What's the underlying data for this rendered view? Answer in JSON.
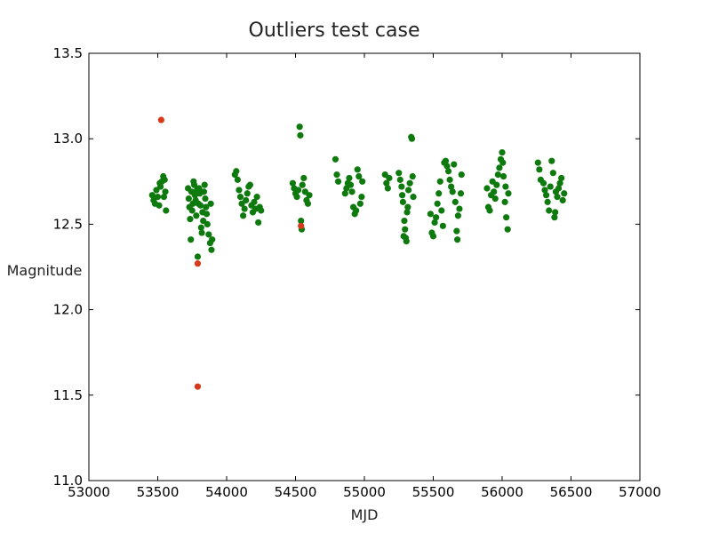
{
  "chart_data": {
    "type": "scatter",
    "title": "Outliers test case",
    "xlabel": "MJD",
    "ylabel": "Magnitude",
    "xlim": [
      53000,
      57000
    ],
    "ylim": [
      11.0,
      13.5
    ],
    "xticks": [
      53000,
      53500,
      54000,
      54500,
      55000,
      55500,
      56000,
      56500,
      57000
    ],
    "yticks": [
      11.0,
      11.5,
      12.0,
      12.5,
      13.0,
      13.5
    ],
    "xtick_labels": [
      "53000",
      "53500",
      "54000",
      "54500",
      "55000",
      "55500",
      "56000",
      "56500",
      "57000"
    ],
    "ytick_labels": [
      "11.0",
      "11.5",
      "12.0",
      "12.5",
      "13.0",
      "13.5"
    ],
    "grid": false,
    "series": [
      {
        "color": "#d63a1a",
        "points": [
          [
            53525,
            13.11
          ],
          [
            53790,
            12.27
          ],
          [
            53790,
            11.55
          ],
          [
            54540,
            12.49
          ]
        ]
      },
      {
        "color": "#0e7a0e",
        "points": [
          [
            53460,
            12.67
          ],
          [
            53470,
            12.64
          ],
          [
            53480,
            12.62
          ],
          [
            53490,
            12.7
          ],
          [
            53500,
            12.66
          ],
          [
            53510,
            12.61
          ],
          [
            53520,
            12.72
          ],
          [
            53530,
            12.75
          ],
          [
            53540,
            12.78
          ],
          [
            53550,
            12.76
          ],
          [
            53555,
            12.69
          ],
          [
            53560,
            12.58
          ],
          [
            53545,
            12.66
          ],
          [
            53515,
            12.74
          ],
          [
            53720,
            12.71
          ],
          [
            53725,
            12.65
          ],
          [
            53730,
            12.6
          ],
          [
            53735,
            12.53
          ],
          [
            53740,
            12.41
          ],
          [
            53745,
            12.69
          ],
          [
            53750,
            12.58
          ],
          [
            53755,
            12.62
          ],
          [
            53760,
            12.75
          ],
          [
            53765,
            12.73
          ],
          [
            53770,
            12.67
          ],
          [
            53775,
            12.64
          ],
          [
            53780,
            12.55
          ],
          [
            53785,
            12.7
          ],
          [
            53790,
            12.31
          ],
          [
            53795,
            12.62
          ],
          [
            53800,
            12.71
          ],
          [
            53805,
            12.68
          ],
          [
            53810,
            12.61
          ],
          [
            53815,
            12.48
          ],
          [
            53820,
            12.45
          ],
          [
            53825,
            12.57
          ],
          [
            53830,
            12.52
          ],
          [
            53835,
            12.69
          ],
          [
            53840,
            12.73
          ],
          [
            53845,
            12.65
          ],
          [
            53850,
            12.6
          ],
          [
            53855,
            12.56
          ],
          [
            53860,
            12.5
          ],
          [
            53870,
            12.44
          ],
          [
            53880,
            12.39
          ],
          [
            53890,
            12.35
          ],
          [
            53895,
            12.41
          ],
          [
            53885,
            12.62
          ],
          [
            54060,
            12.79
          ],
          [
            54070,
            12.81
          ],
          [
            54080,
            12.76
          ],
          [
            54090,
            12.7
          ],
          [
            54100,
            12.66
          ],
          [
            54110,
            12.62
          ],
          [
            54120,
            12.55
          ],
          [
            54130,
            12.59
          ],
          [
            54140,
            12.64
          ],
          [
            54150,
            12.68
          ],
          [
            54160,
            12.72
          ],
          [
            54170,
            12.73
          ],
          [
            54180,
            12.61
          ],
          [
            54190,
            12.57
          ],
          [
            54200,
            12.63
          ],
          [
            54210,
            12.59
          ],
          [
            54220,
            12.66
          ],
          [
            54230,
            12.51
          ],
          [
            54240,
            12.6
          ],
          [
            54250,
            12.58
          ],
          [
            54480,
            12.74
          ],
          [
            54490,
            12.71
          ],
          [
            54500,
            12.68
          ],
          [
            54510,
            12.66
          ],
          [
            54520,
            12.7
          ],
          [
            54530,
            13.07
          ],
          [
            54535,
            13.02
          ],
          [
            54540,
            12.52
          ],
          [
            54545,
            12.47
          ],
          [
            54550,
            12.73
          ],
          [
            54560,
            12.77
          ],
          [
            54570,
            12.69
          ],
          [
            54580,
            12.64
          ],
          [
            54590,
            12.62
          ],
          [
            54600,
            12.67
          ],
          [
            54790,
            12.88
          ],
          [
            54800,
            12.79
          ],
          [
            54810,
            12.75
          ],
          [
            54860,
            12.68
          ],
          [
            54870,
            12.71
          ],
          [
            54880,
            12.74
          ],
          [
            54890,
            12.77
          ],
          [
            54900,
            12.73
          ],
          [
            54910,
            12.69
          ],
          [
            54920,
            12.6
          ],
          [
            54930,
            12.56
          ],
          [
            54940,
            12.58
          ],
          [
            54950,
            12.82
          ],
          [
            54960,
            12.78
          ],
          [
            54970,
            12.62
          ],
          [
            54980,
            12.66
          ],
          [
            54985,
            12.75
          ],
          [
            55150,
            12.79
          ],
          [
            55160,
            12.74
          ],
          [
            55170,
            12.71
          ],
          [
            55180,
            12.77
          ],
          [
            55250,
            12.8
          ],
          [
            55260,
            12.76
          ],
          [
            55270,
            12.72
          ],
          [
            55275,
            12.67
          ],
          [
            55280,
            12.63
          ],
          [
            55290,
            12.52
          ],
          [
            55295,
            12.47
          ],
          [
            55300,
            12.42
          ],
          [
            55305,
            12.4
          ],
          [
            55310,
            12.57
          ],
          [
            55315,
            12.6
          ],
          [
            55320,
            12.7
          ],
          [
            55330,
            12.74
          ],
          [
            55340,
            13.01
          ],
          [
            55345,
            13.0
          ],
          [
            55350,
            12.78
          ],
          [
            55355,
            12.66
          ],
          [
            55285,
            12.43
          ],
          [
            55480,
            12.56
          ],
          [
            55490,
            12.45
          ],
          [
            55500,
            12.43
          ],
          [
            55510,
            12.51
          ],
          [
            55520,
            12.54
          ],
          [
            55530,
            12.62
          ],
          [
            55540,
            12.68
          ],
          [
            55550,
            12.75
          ],
          [
            55560,
            12.58
          ],
          [
            55570,
            12.49
          ],
          [
            55580,
            12.86
          ],
          [
            55590,
            12.87
          ],
          [
            55600,
            12.84
          ],
          [
            55610,
            12.81
          ],
          [
            55620,
            12.76
          ],
          [
            55630,
            12.72
          ],
          [
            55640,
            12.69
          ],
          [
            55650,
            12.85
          ],
          [
            55660,
            12.63
          ],
          [
            55670,
            12.46
          ],
          [
            55675,
            12.41
          ],
          [
            55680,
            12.55
          ],
          [
            55690,
            12.59
          ],
          [
            55700,
            12.68
          ],
          [
            55705,
            12.79
          ],
          [
            55890,
            12.71
          ],
          [
            55900,
            12.6
          ],
          [
            55910,
            12.58
          ],
          [
            55920,
            12.67
          ],
          [
            55930,
            12.75
          ],
          [
            55940,
            12.69
          ],
          [
            55950,
            12.65
          ],
          [
            55960,
            12.73
          ],
          [
            55970,
            12.79
          ],
          [
            55980,
            12.83
          ],
          [
            55990,
            12.88
          ],
          [
            56000,
            12.92
          ],
          [
            56005,
            12.86
          ],
          [
            56010,
            12.78
          ],
          [
            56020,
            12.63
          ],
          [
            56030,
            12.54
          ],
          [
            56040,
            12.47
          ],
          [
            56045,
            12.68
          ],
          [
            56025,
            12.72
          ],
          [
            56260,
            12.86
          ],
          [
            56270,
            12.82
          ],
          [
            56280,
            12.76
          ],
          [
            56300,
            12.74
          ],
          [
            56310,
            12.7
          ],
          [
            56320,
            12.67
          ],
          [
            56330,
            12.63
          ],
          [
            56340,
            12.58
          ],
          [
            56350,
            12.72
          ],
          [
            56360,
            12.87
          ],
          [
            56370,
            12.8
          ],
          [
            56380,
            12.54
          ],
          [
            56385,
            12.57
          ],
          [
            56390,
            12.69
          ],
          [
            56400,
            12.66
          ],
          [
            56410,
            12.71
          ],
          [
            56420,
            12.74
          ],
          [
            56430,
            12.77
          ],
          [
            56440,
            12.64
          ],
          [
            56450,
            12.68
          ]
        ]
      }
    ]
  }
}
